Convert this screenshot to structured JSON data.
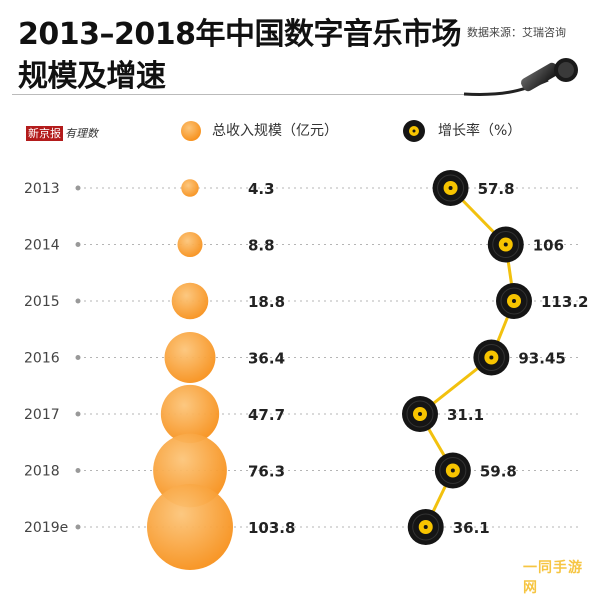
{
  "chart_data": {
    "type": "bubble-and-line",
    "title_line1": "2013–2018年中国数字音乐市场",
    "title_line2": "规模及增速",
    "source": "数据来源：艾瑞咨询",
    "brand": [
      "新京报",
      "有理数"
    ],
    "legend": [
      {
        "label": "总收入规模（亿元）",
        "marker": "orange-bubble"
      },
      {
        "label": "增长率（%）",
        "marker": "vinyl-record"
      }
    ],
    "categories": [
      "2013",
      "2014",
      "2015",
      "2016",
      "2017",
      "2018",
      "2019e"
    ],
    "series": [
      {
        "name": "总收入规模（亿元）",
        "values": [
          4.3,
          8.8,
          18.8,
          36.4,
          47.7,
          76.3,
          103.8
        ],
        "value_labels": [
          "4.3",
          "8.8",
          "18.8",
          "36.4",
          "47.7",
          "76.3",
          "103.8"
        ]
      },
      {
        "name": "增长率（%）",
        "values": [
          57.8,
          106,
          113.2,
          93.45,
          31.1,
          59.8,
          36.1
        ],
        "value_labels": [
          "57.8",
          "106",
          "113.2",
          "93.45",
          "31.1",
          "59.8",
          "36.1"
        ]
      }
    ],
    "colors": {
      "bubble": "#f7921e",
      "bubble_light": "#fbbf6a",
      "line": "#f2c10e",
      "record": "#151515",
      "label_center": "#f7c400"
    }
  },
  "watermark": "一同手游网"
}
